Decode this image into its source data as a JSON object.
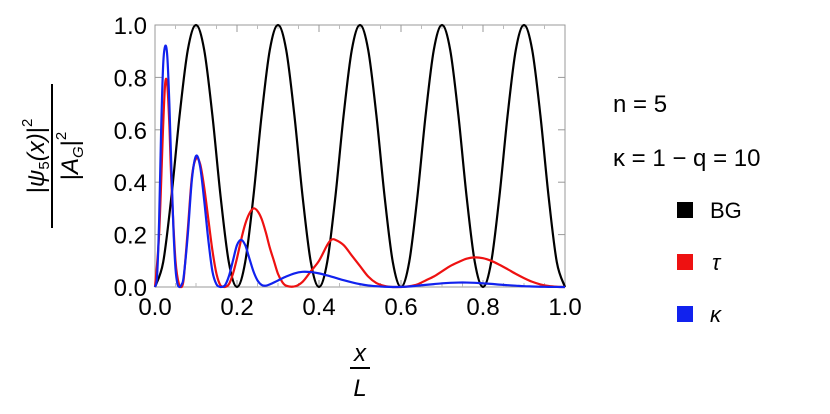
{
  "chart_data": {
    "type": "line",
    "xlabel_num": "x",
    "xlabel_den": "L",
    "ylabel_num_psi": "ψ",
    "ylabel_num_sub": "5",
    "ylabel_num_arg": "(x)",
    "ylabel_den_a": "A",
    "ylabel_den_sub": "G",
    "ylabel_power": "2",
    "xlim": [
      0,
      1
    ],
    "ylim": [
      0,
      1
    ],
    "x_ticks": [
      "0.0",
      "0.2",
      "0.4",
      "0.6",
      "0.8",
      "1.0"
    ],
    "y_ticks": [
      "0.0",
      "0.2",
      "0.4",
      "0.6",
      "0.8",
      "1.0"
    ],
    "annotations": {
      "n_line": "n = 5",
      "kappa_line": "κ = 1 − q = 10"
    },
    "series": [
      {
        "name": "BG",
        "color": "#000000",
        "x": [
          0,
          0.02,
          0.04,
          0.06,
          0.08,
          0.1,
          0.12,
          0.14,
          0.16,
          0.18,
          0.2,
          0.22,
          0.24,
          0.26,
          0.28,
          0.3,
          0.32,
          0.34,
          0.36,
          0.38,
          0.4,
          0.42,
          0.44,
          0.46,
          0.48,
          0.5,
          0.52,
          0.54,
          0.56,
          0.58,
          0.6,
          0.62,
          0.64,
          0.66,
          0.68,
          0.7,
          0.72,
          0.74,
          0.76,
          0.78,
          0.8,
          0.82,
          0.84,
          0.86,
          0.88,
          0.9,
          0.92,
          0.94,
          0.96,
          0.98,
          1.0
        ],
        "values": [
          0,
          0.095,
          0.345,
          0.655,
          0.905,
          1.0,
          0.905,
          0.655,
          0.345,
          0.095,
          0,
          0.095,
          0.345,
          0.655,
          0.905,
          1.0,
          0.905,
          0.655,
          0.345,
          0.095,
          0,
          0.095,
          0.345,
          0.655,
          0.905,
          1.0,
          0.905,
          0.655,
          0.345,
          0.095,
          0,
          0.095,
          0.345,
          0.655,
          0.905,
          1.0,
          0.905,
          0.655,
          0.345,
          0.095,
          0,
          0.095,
          0.345,
          0.655,
          0.905,
          1.0,
          0.905,
          0.655,
          0.345,
          0.095,
          0
        ]
      },
      {
        "name": "τ",
        "color": "#ee1111",
        "x": [
          0,
          0.01,
          0.02,
          0.025,
          0.03,
          0.035,
          0.04,
          0.05,
          0.06,
          0.065,
          0.07,
          0.08,
          0.09,
          0.1,
          0.11,
          0.12,
          0.13,
          0.14,
          0.15,
          0.16,
          0.17,
          0.18,
          0.19,
          0.2,
          0.21,
          0.22,
          0.23,
          0.24,
          0.25,
          0.26,
          0.27,
          0.28,
          0.29,
          0.3,
          0.31,
          0.32,
          0.34,
          0.36,
          0.38,
          0.4,
          0.42,
          0.43,
          0.44,
          0.46,
          0.48,
          0.5,
          0.52,
          0.54,
          0.56,
          0.58,
          0.6,
          0.62,
          0.64,
          0.66,
          0.68,
          0.7,
          0.72,
          0.74,
          0.76,
          0.78,
          0.8,
          0.82,
          0.84,
          0.86,
          0.88,
          0.9,
          0.92,
          0.94,
          0.96,
          0.98,
          1.0
        ],
        "values": [
          0,
          0.2,
          0.62,
          0.78,
          0.77,
          0.62,
          0.4,
          0.1,
          0,
          0,
          0.03,
          0.22,
          0.42,
          0.49,
          0.47,
          0.38,
          0.26,
          0.14,
          0.05,
          0.005,
          0,
          0.01,
          0.05,
          0.11,
          0.18,
          0.24,
          0.28,
          0.3,
          0.29,
          0.26,
          0.21,
          0.15,
          0.1,
          0.05,
          0.02,
          0.005,
          0.002,
          0.02,
          0.06,
          0.1,
          0.16,
          0.18,
          0.18,
          0.16,
          0.12,
          0.08,
          0.04,
          0.015,
          0.004,
          0,
          0,
          0.003,
          0.01,
          0.025,
          0.04,
          0.06,
          0.08,
          0.095,
          0.108,
          0.113,
          0.11,
          0.1,
          0.085,
          0.068,
          0.05,
          0.034,
          0.02,
          0.01,
          0.004,
          0.001,
          0
        ]
      },
      {
        "name": "κ",
        "color": "#1122ee",
        "x": [
          0,
          0.005,
          0.01,
          0.015,
          0.02,
          0.025,
          0.03,
          0.035,
          0.04,
          0.045,
          0.05,
          0.055,
          0.06,
          0.065,
          0.07,
          0.08,
          0.09,
          0.1,
          0.11,
          0.12,
          0.13,
          0.14,
          0.15,
          0.16,
          0.17,
          0.18,
          0.19,
          0.2,
          0.21,
          0.22,
          0.23,
          0.24,
          0.25,
          0.26,
          0.27,
          0.28,
          0.3,
          0.32,
          0.34,
          0.36,
          0.38,
          0.4,
          0.42,
          0.44,
          0.46,
          0.48,
          0.5,
          0.52,
          0.54,
          0.56,
          0.58,
          0.6,
          0.62,
          0.64,
          0.66,
          0.68,
          0.7,
          0.72,
          0.74,
          0.76,
          0.78,
          0.8,
          0.82,
          0.84,
          0.86,
          0.88,
          0.9,
          0.92,
          0.94,
          0.96,
          0.98,
          1.0
        ],
        "values": [
          0,
          0.04,
          0.25,
          0.6,
          0.85,
          0.92,
          0.88,
          0.7,
          0.45,
          0.22,
          0.07,
          0.01,
          0,
          0.01,
          0.04,
          0.2,
          0.41,
          0.5,
          0.46,
          0.33,
          0.18,
          0.06,
          0.01,
          0,
          0.005,
          0.04,
          0.1,
          0.16,
          0.18,
          0.16,
          0.11,
          0.06,
          0.025,
          0.008,
          0.005,
          0.01,
          0.025,
          0.04,
          0.052,
          0.058,
          0.057,
          0.052,
          0.044,
          0.035,
          0.026,
          0.018,
          0.011,
          0.006,
          0.003,
          0.001,
          0,
          0.0005,
          0.002,
          0.005,
          0.008,
          0.011,
          0.014,
          0.016,
          0.017,
          0.017,
          0.016,
          0.014,
          0.012,
          0.009,
          0.007,
          0.005,
          0.003,
          0.002,
          0.001,
          0.0005,
          0.0002,
          0
        ]
      }
    ]
  }
}
